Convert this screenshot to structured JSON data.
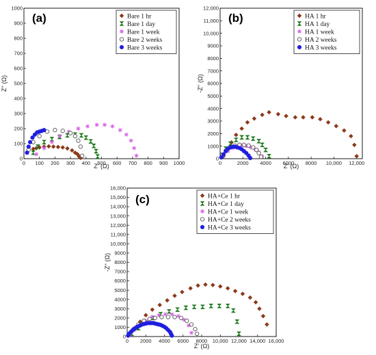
{
  "chart_data": [
    {
      "type": "scatter",
      "panel": "(a)",
      "xlabel": "Z' (Ω)",
      "ylabel": "Z'' (Ω)",
      "xlim": [
        0,
        1000
      ],
      "ylim": [
        0,
        1000
      ],
      "xticks": [
        0,
        100,
        200,
        300,
        400,
        500,
        600,
        700,
        800,
        900,
        1000
      ],
      "yticks": [
        0,
        100,
        200,
        300,
        400,
        500,
        600,
        700,
        800,
        900,
        1000
      ],
      "xtick_labels": [
        "0",
        "100",
        "200",
        "300",
        "400",
        "500",
        "600",
        "700",
        "800",
        "900",
        "1000"
      ],
      "ytick_labels": [
        "0",
        "100",
        "200",
        "300",
        "400",
        "500",
        "600",
        "700",
        "800",
        "900",
        "1000"
      ],
      "legend_position": "top-right",
      "series": [
        {
          "name": "Bare 1 hr",
          "marker": "diamond",
          "color": "#8B3A1A",
          "x": [
            60,
            80,
            100,
            130,
            160,
            190,
            220,
            250,
            280,
            310,
            330,
            345,
            355,
            365
          ],
          "y": [
            65,
            70,
            75,
            80,
            82,
            80,
            78,
            75,
            68,
            55,
            40,
            30,
            15,
            5
          ]
        },
        {
          "name": "Bare 1 day",
          "marker": "hourglass",
          "color": "#1E7A1E",
          "x": [
            60,
            90,
            130,
            180,
            230,
            280,
            330,
            370,
            400,
            430,
            450,
            465,
            475
          ],
          "y": [
            40,
            80,
            110,
            130,
            145,
            155,
            160,
            155,
            140,
            115,
            85,
            50,
            15
          ]
        },
        {
          "name": "Bare 1 week",
          "marker": "asterisk",
          "color": "#D65CE6",
          "x": [
            80,
            130,
            180,
            230,
            290,
            350,
            410,
            470,
            520,
            570,
            620,
            660,
            690,
            710,
            725
          ],
          "y": [
            30,
            70,
            110,
            150,
            180,
            200,
            215,
            225,
            225,
            215,
            190,
            160,
            120,
            70,
            20
          ]
        },
        {
          "name": "Bare 2 weeks",
          "marker": "open-circle",
          "color": "#555555",
          "x": [
            30,
            60,
            100,
            150,
            200,
            250,
            300,
            330,
            350,
            365,
            375
          ],
          "y": [
            60,
            110,
            150,
            180,
            190,
            185,
            170,
            150,
            120,
            80,
            20
          ]
        },
        {
          "name": "Bare 3 weeks",
          "marker": "filled-circle",
          "color": "#1F1FE0",
          "x": [
            20,
            30,
            40,
            55,
            70,
            85,
            100,
            115,
            130
          ],
          "y": [
            40,
            80,
            110,
            140,
            160,
            175,
            180,
            185,
            190
          ]
        }
      ]
    },
    {
      "type": "scatter",
      "panel": "(b)",
      "xlabel": "Z' (Ω)",
      "ylabel": "-Z'' (Ω)",
      "xlim": [
        0,
        12500
      ],
      "ylim": [
        0,
        12000
      ],
      "xticks": [
        0,
        2000,
        4000,
        6000,
        8000,
        10000,
        12000
      ],
      "yticks": [
        0,
        1000,
        2000,
        3000,
        4000,
        5000,
        6000,
        7000,
        8000,
        9000,
        10000,
        11000,
        12000
      ],
      "xtick_labels": [
        "0",
        "2000",
        "4000",
        "6000",
        "8000",
        "10,000",
        "12,000"
      ],
      "ytick_labels": [
        "0",
        "1000",
        "2000",
        "3000",
        "4000",
        "5000",
        "6000",
        "7000",
        "8000",
        "9000",
        "10,000",
        "11,000",
        "12,000"
      ],
      "legend_position": "top-right",
      "series": [
        {
          "name": "HA 1 hr",
          "marker": "diamond",
          "color": "#8B3A1A",
          "x": [
            300,
            600,
            1000,
            1400,
            1900,
            2400,
            3000,
            3700,
            4300,
            5100,
            5800,
            6600,
            7300,
            8100,
            8800,
            9500,
            10200,
            10900,
            11500,
            11800,
            12000
          ],
          "y": [
            200,
            700,
            1300,
            1900,
            2400,
            2900,
            3200,
            3500,
            3700,
            3550,
            3400,
            3300,
            3300,
            3300,
            3150,
            2900,
            2600,
            2250,
            1800,
            1100,
            200
          ]
        },
        {
          "name": "HA 1 day",
          "marker": "hourglass",
          "color": "#1E7A1E",
          "x": [
            200,
            500,
            900,
            1400,
            1900,
            2400,
            2900,
            3400,
            3700,
            4000,
            4300
          ],
          "y": [
            300,
            800,
            1200,
            1500,
            1700,
            1700,
            1600,
            1400,
            1100,
            700,
            200
          ]
        },
        {
          "name": "HA 1 week",
          "marker": "asterisk",
          "color": "#D65CE6",
          "x": [
            300,
            700,
            1100,
            1500,
            1900,
            2300,
            2700,
            3100,
            3400,
            3700
          ],
          "y": [
            300,
            600,
            850,
            1000,
            1050,
            1000,
            900,
            700,
            500,
            200
          ]
        },
        {
          "name": "HA 2 weeks",
          "marker": "open-circle",
          "color": "#555555",
          "x": [
            200,
            500,
            900,
            1300,
            1700,
            2100,
            2500,
            2900,
            3200,
            3400,
            3600
          ],
          "y": [
            300,
            650,
            900,
            1050,
            1100,
            1100,
            1050,
            900,
            700,
            450,
            150
          ]
        },
        {
          "name": "HA 3 weeks",
          "marker": "filled-circle",
          "color": "#1F1FE0",
          "x": [
            100,
            300,
            500,
            700,
            900,
            1100,
            1300,
            1500,
            1700,
            1900,
            2100,
            2300,
            2500,
            2650
          ],
          "y": [
            100,
            350,
            600,
            800,
            900,
            950,
            950,
            900,
            850,
            750,
            600,
            450,
            250,
            50
          ]
        }
      ]
    },
    {
      "type": "scatter",
      "panel": "(c)",
      "xlabel": "Z' (Ω)",
      "ylabel": "-Z'' (Ω)",
      "xlim": [
        0,
        16000
      ],
      "ylim": [
        0,
        16000
      ],
      "xticks": [
        0,
        2000,
        4000,
        6000,
        8000,
        10000,
        12000,
        14000,
        16000
      ],
      "yticks": [
        0,
        1000,
        2000,
        3000,
        4000,
        5000,
        6000,
        7000,
        8000,
        9000,
        10000,
        11000,
        12000,
        13000,
        14000,
        15000,
        16000
      ],
      "xtick_labels": [
        "0",
        "2000",
        "4000",
        "6000",
        "8000",
        "10,000",
        "12,000",
        "14,000",
        "16,000"
      ],
      "ytick_labels": [
        "0",
        "1000",
        "2000",
        "3000",
        "4000",
        "5000",
        "6000",
        "7000",
        "8000",
        "9000",
        "10,000",
        "11,000",
        "12,000",
        "13,000",
        "14,000",
        "15,000",
        "16,000"
      ],
      "legend_position": "top-right",
      "series": [
        {
          "name": "HA+Ce 1 hr",
          "marker": "diamond",
          "color": "#8B3A1A",
          "x": [
            300,
            800,
            1400,
            2000,
            2700,
            3500,
            4300,
            5100,
            5900,
            6800,
            7600,
            8400,
            9200,
            10000,
            10800,
            11600,
            12400,
            13200,
            13800,
            14200,
            14600,
            15000
          ],
          "y": [
            300,
            900,
            1600,
            2300,
            2900,
            3400,
            3900,
            4400,
            4800,
            5200,
            5500,
            5600,
            5550,
            5400,
            5200,
            4900,
            4600,
            4200,
            3700,
            3000,
            2200,
            1300
          ]
        },
        {
          "name": "HA+Ce 1 day",
          "marker": "hourglass",
          "color": "#1E7A1E",
          "x": [
            500,
            1200,
            2000,
            2800,
            3600,
            4500,
            5400,
            6300,
            7200,
            8100,
            9000,
            9900,
            10800,
            11400,
            11800,
            12000
          ],
          "y": [
            300,
            900,
            1500,
            2000,
            2400,
            2700,
            2900,
            3100,
            3200,
            3200,
            3300,
            3300,
            3300,
            2800,
            1600,
            300
          ]
        },
        {
          "name": "HA+Ce 1 week",
          "marker": "asterisk",
          "color": "#D65CE6",
          "x": [
            300,
            800,
            1400,
            2000,
            2700,
            3400,
            4100,
            4800,
            5500,
            6100,
            6600,
            6900
          ],
          "y": [
            200,
            700,
            1200,
            1700,
            2100,
            2300,
            2400,
            2400,
            2200,
            1800,
            1200,
            400
          ]
        },
        {
          "name": "HA+Ce 2 weeks",
          "marker": "open-circle",
          "color": "#555555",
          "x": [
            300,
            700,
            1200,
            1800,
            2400,
            3000,
            3700,
            4400,
            5100,
            5800,
            6400,
            6900,
            7300,
            7500
          ],
          "y": [
            300,
            800,
            1300,
            1700,
            1900,
            2000,
            2100,
            2100,
            2100,
            2000,
            1700,
            1300,
            800,
            300
          ]
        },
        {
          "name": "HA+Ce 3 weeks",
          "marker": "filled-circle",
          "color": "#1F1FE0",
          "x": [
            100,
            200,
            400,
            600,
            800,
            1000,
            1200,
            1400,
            1600,
            1800,
            2000,
            2200,
            2400,
            2600,
            2800,
            3000,
            3200,
            3400,
            3600,
            3800,
            4000,
            4200,
            4400,
            4600,
            4700,
            4800
          ],
          "y": [
            100,
            300,
            500,
            700,
            850,
            1000,
            1100,
            1200,
            1300,
            1350,
            1400,
            1450,
            1450,
            1450,
            1450,
            1400,
            1350,
            1300,
            1250,
            1150,
            1050,
            900,
            700,
            500,
            300,
            100
          ]
        }
      ]
    }
  ]
}
